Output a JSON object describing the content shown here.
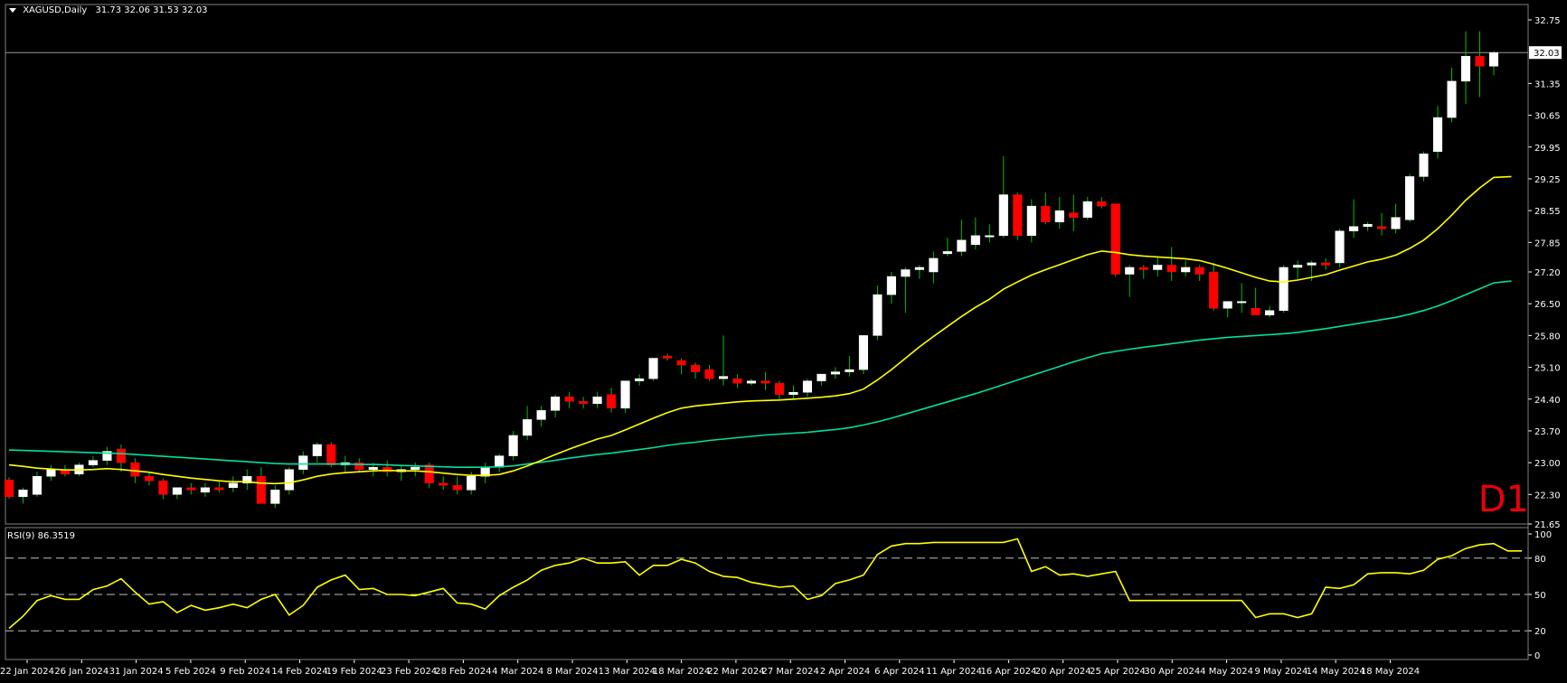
{
  "window": {
    "symbol": "XAGUSD,Daily",
    "ohlc": "31.73 32.06 31.53 32.03",
    "timeframe_label": "D1"
  },
  "colors": {
    "background": "#000000",
    "bull_body": "#ffffff",
    "bear_body": "#ff0000",
    "wick": "#00c000",
    "ma_fast": "#ffff00",
    "ma_slow": "#00e0a0",
    "rsi_line": "#ffff00",
    "axis_text": "#ffffff",
    "price_label_bg": "#ffffff",
    "timeframe_label": "#e8000a"
  },
  "chart_data": [
    {
      "type": "candlestick",
      "symbol": "XAGUSD",
      "period": "Daily",
      "last_price": 32.03,
      "price_axis_ticks": [
        "32.75",
        "32.03",
        "31.35",
        "30.65",
        "29.95",
        "29.25",
        "28.55",
        "27.85",
        "27.20",
        "26.50",
        "25.80",
        "25.10",
        "24.40",
        "23.70",
        "23.00",
        "22.30",
        "21.65"
      ],
      "ylim": [
        21.65,
        32.75
      ],
      "date_labels": [
        "22 Jan 2024",
        "26 Jan 2024",
        "31 Jan 2024",
        "5 Feb 2024",
        "9 Feb 2024",
        "14 Feb 2024",
        "19 Feb 2024",
        "23 Feb 2024",
        "28 Feb 2024",
        "4 Mar 2024",
        "8 Mar 2024",
        "13 Mar 2024",
        "18 Mar 2024",
        "22 Mar 2024",
        "27 Mar 2024",
        "2 Apr 2024",
        "6 Apr 2024",
        "11 Apr 2024",
        "16 Apr 2024",
        "20 Apr 2024",
        "25 Apr 2024",
        "30 Apr 2024",
        "4 May 2024",
        "9 May 2024",
        "14 May 2024",
        "18 May 2024"
      ],
      "candles": [
        [
          22.62,
          22.68,
          22.2,
          22.25
        ],
        [
          22.25,
          22.45,
          22.1,
          22.4
        ],
        [
          22.3,
          22.8,
          22.25,
          22.7
        ],
        [
          22.7,
          22.95,
          22.6,
          22.85
        ],
        [
          22.85,
          22.95,
          22.7,
          22.75
        ],
        [
          22.75,
          23.0,
          22.7,
          22.95
        ],
        [
          22.95,
          23.15,
          22.9,
          23.05
        ],
        [
          23.05,
          23.35,
          22.95,
          23.25
        ],
        [
          23.3,
          23.4,
          22.8,
          23.0
        ],
        [
          23.0,
          23.1,
          22.55,
          22.7
        ],
        [
          22.7,
          22.8,
          22.5,
          22.6
        ],
        [
          22.6,
          22.65,
          22.2,
          22.3
        ],
        [
          22.3,
          22.45,
          22.2,
          22.45
        ],
        [
          22.45,
          22.55,
          22.3,
          22.4
        ],
        [
          22.35,
          22.55,
          22.25,
          22.45
        ],
        [
          22.45,
          22.6,
          22.35,
          22.4
        ],
        [
          22.45,
          22.7,
          22.35,
          22.55
        ],
        [
          22.55,
          22.85,
          22.4,
          22.7
        ],
        [
          22.7,
          22.9,
          22.1,
          22.1
        ],
        [
          22.1,
          22.5,
          22.0,
          22.4
        ],
        [
          22.4,
          22.9,
          22.3,
          22.85
        ],
        [
          22.85,
          23.25,
          22.75,
          23.15
        ],
        [
          23.15,
          23.45,
          23.0,
          23.4
        ],
        [
          23.4,
          23.45,
          22.9,
          22.95
        ],
        [
          22.95,
          23.15,
          22.8,
          23.0
        ],
        [
          23.0,
          23.1,
          22.8,
          22.85
        ],
        [
          22.85,
          23.0,
          22.7,
          22.9
        ],
        [
          22.9,
          23.05,
          22.7,
          22.8
        ],
        [
          22.8,
          22.95,
          22.6,
          22.85
        ],
        [
          22.85,
          23.0,
          22.7,
          22.9
        ],
        [
          22.95,
          23.0,
          22.45,
          22.55
        ],
        [
          22.55,
          22.7,
          22.4,
          22.5
        ],
        [
          22.5,
          22.7,
          22.3,
          22.4
        ],
        [
          22.4,
          22.8,
          22.3,
          22.7
        ],
        [
          22.7,
          23.0,
          22.55,
          22.9
        ],
        [
          22.9,
          23.2,
          22.8,
          23.15
        ],
        [
          23.15,
          23.7,
          23.05,
          23.6
        ],
        [
          23.6,
          24.25,
          23.5,
          23.95
        ],
        [
          23.95,
          24.25,
          23.8,
          24.15
        ],
        [
          24.15,
          24.5,
          24.0,
          24.45
        ],
        [
          24.45,
          24.55,
          24.2,
          24.35
        ],
        [
          24.35,
          24.45,
          24.2,
          24.3
        ],
        [
          24.3,
          24.55,
          24.2,
          24.45
        ],
        [
          24.5,
          24.65,
          24.1,
          24.2
        ],
        [
          24.2,
          24.8,
          24.1,
          24.8
        ],
        [
          24.8,
          24.95,
          24.7,
          24.85
        ],
        [
          24.85,
          25.3,
          24.8,
          25.3
        ],
        [
          25.35,
          25.4,
          25.25,
          25.3
        ],
        [
          25.25,
          25.3,
          24.95,
          25.15
        ],
        [
          25.15,
          25.2,
          24.85,
          25.0
        ],
        [
          25.05,
          25.15,
          24.8,
          24.85
        ],
        [
          24.85,
          25.8,
          24.7,
          24.9
        ],
        [
          24.85,
          24.95,
          24.65,
          24.75
        ],
        [
          24.75,
          24.85,
          24.7,
          24.8
        ],
        [
          24.8,
          25.0,
          24.6,
          24.75
        ],
        [
          24.75,
          24.8,
          24.4,
          24.5
        ],
        [
          24.5,
          24.7,
          24.4,
          24.55
        ],
        [
          24.55,
          24.85,
          24.45,
          24.8
        ],
        [
          24.8,
          24.95,
          24.7,
          24.95
        ],
        [
          24.95,
          25.1,
          24.85,
          25.0
        ],
        [
          25.0,
          25.35,
          24.9,
          25.05
        ],
        [
          25.05,
          25.8,
          24.95,
          25.8
        ],
        [
          25.8,
          26.9,
          25.7,
          26.7
        ],
        [
          26.7,
          27.2,
          26.5,
          27.1
        ],
        [
          27.1,
          27.3,
          26.3,
          27.25
        ],
        [
          27.25,
          27.35,
          27.05,
          27.3
        ],
        [
          27.2,
          27.65,
          26.95,
          27.5
        ],
        [
          27.6,
          27.95,
          27.55,
          27.65
        ],
        [
          27.65,
          28.35,
          27.55,
          27.9
        ],
        [
          27.8,
          28.4,
          27.7,
          28.0
        ],
        [
          28.0,
          28.25,
          27.85,
          28.0
        ],
        [
          28.0,
          29.75,
          27.95,
          28.9
        ],
        [
          28.9,
          28.95,
          27.9,
          28.0
        ],
        [
          28.0,
          28.8,
          27.85,
          28.65
        ],
        [
          28.65,
          28.95,
          28.25,
          28.3
        ],
        [
          28.3,
          28.85,
          28.15,
          28.55
        ],
        [
          28.5,
          28.9,
          28.1,
          28.4
        ],
        [
          28.4,
          28.85,
          28.35,
          28.75
        ],
        [
          28.75,
          28.85,
          28.6,
          28.65
        ],
        [
          28.7,
          28.7,
          27.1,
          27.15
        ],
        [
          27.15,
          27.35,
          26.65,
          27.3
        ],
        [
          27.3,
          27.35,
          27.05,
          27.25
        ],
        [
          27.25,
          27.55,
          27.1,
          27.35
        ],
        [
          27.35,
          27.75,
          27.0,
          27.2
        ],
        [
          27.2,
          27.45,
          27.1,
          27.3
        ],
        [
          27.3,
          27.35,
          27.0,
          27.15
        ],
        [
          27.2,
          27.4,
          26.35,
          26.4
        ],
        [
          26.4,
          26.55,
          26.2,
          26.55
        ],
        [
          26.55,
          26.95,
          26.3,
          26.55
        ],
        [
          26.4,
          26.85,
          26.25,
          26.25
        ],
        [
          26.25,
          26.45,
          26.2,
          26.35
        ],
        [
          26.35,
          27.35,
          26.3,
          27.3
        ],
        [
          27.3,
          27.45,
          27.05,
          27.35
        ],
        [
          27.35,
          27.45,
          27.0,
          27.4
        ],
        [
          27.4,
          27.5,
          27.25,
          27.35
        ],
        [
          27.4,
          28.15,
          27.3,
          28.1
        ],
        [
          28.1,
          28.8,
          27.95,
          28.2
        ],
        [
          28.2,
          28.3,
          28.1,
          28.25
        ],
        [
          28.2,
          28.5,
          28.0,
          28.15
        ],
        [
          28.15,
          28.7,
          28.05,
          28.4
        ],
        [
          28.35,
          29.35,
          28.3,
          29.3
        ],
        [
          29.3,
          29.85,
          29.2,
          29.8
        ],
        [
          29.85,
          30.85,
          29.7,
          30.6
        ],
        [
          30.6,
          31.7,
          30.5,
          31.4
        ],
        [
          31.4,
          32.5,
          30.9,
          31.95
        ],
        [
          31.95,
          32.5,
          31.05,
          31.73
        ],
        [
          31.73,
          32.06,
          31.53,
          32.03
        ]
      ],
      "ma_fast": [
        22.95,
        22.92,
        22.88,
        22.86,
        22.84,
        22.84,
        22.85,
        22.87,
        22.85,
        22.82,
        22.79,
        22.74,
        22.7,
        22.66,
        22.63,
        22.6,
        22.58,
        22.58,
        22.55,
        22.54,
        22.56,
        22.62,
        22.7,
        22.75,
        22.78,
        22.8,
        22.82,
        22.83,
        22.82,
        22.82,
        22.8,
        22.77,
        22.74,
        22.72,
        22.72,
        22.74,
        22.82,
        22.93,
        23.05,
        23.18,
        23.3,
        23.41,
        23.52,
        23.6,
        23.72,
        23.85,
        23.98,
        24.1,
        24.2,
        24.25,
        24.28,
        24.31,
        24.34,
        24.36,
        24.37,
        24.38,
        24.4,
        24.42,
        24.44,
        24.47,
        24.52,
        24.62,
        24.82,
        25.05,
        25.3,
        25.55,
        25.78,
        26.0,
        26.22,
        26.42,
        26.6,
        26.82,
        26.98,
        27.13,
        27.25,
        27.36,
        27.47,
        27.58,
        27.66,
        27.63,
        27.58,
        27.55,
        27.53,
        27.51,
        27.49,
        27.45,
        27.37,
        27.28,
        27.18,
        27.08,
        27.0,
        26.98,
        27.02,
        27.08,
        27.14,
        27.24,
        27.33,
        27.42,
        27.48,
        27.57,
        27.72,
        27.9,
        28.15,
        28.45,
        28.78,
        29.05,
        29.28
      ],
      "ma_slow": [
        23.28,
        23.27,
        23.26,
        23.25,
        23.24,
        23.23,
        23.22,
        23.21,
        23.2,
        23.18,
        23.16,
        23.14,
        23.12,
        23.1,
        23.08,
        23.06,
        23.04,
        23.02,
        23.0,
        22.98,
        22.97,
        22.97,
        22.97,
        22.97,
        22.97,
        22.96,
        22.96,
        22.95,
        22.94,
        22.93,
        22.92,
        22.91,
        22.9,
        22.9,
        22.9,
        22.91,
        22.93,
        22.97,
        23.01,
        23.05,
        23.1,
        23.14,
        23.18,
        23.21,
        23.25,
        23.29,
        23.33,
        23.38,
        23.42,
        23.45,
        23.49,
        23.52,
        23.55,
        23.58,
        23.61,
        23.63,
        23.65,
        23.67,
        23.7,
        23.73,
        23.77,
        23.83,
        23.9,
        23.98,
        24.07,
        24.16,
        24.25,
        24.34,
        24.43,
        24.52,
        24.62,
        24.72,
        24.82,
        24.92,
        25.02,
        25.12,
        25.22,
        25.31,
        25.4,
        25.45,
        25.5,
        25.54,
        25.58,
        25.62,
        25.66,
        25.7,
        25.73,
        25.76,
        25.78,
        25.8,
        25.82,
        25.84,
        25.87,
        25.91,
        25.95,
        26.0,
        26.05,
        26.1,
        26.15,
        26.2,
        26.27,
        26.35,
        26.45,
        26.57,
        26.7,
        26.83,
        26.96
      ],
      "ma_fast_end": 29.3,
      "ma_slow_end": 27.0
    },
    {
      "type": "line",
      "indicator": "RSI(9)",
      "current_value": "86.3519",
      "levels": [
        "80",
        "50",
        "20"
      ],
      "axis_ticks": [
        "100",
        "80",
        "50",
        "20",
        "0"
      ],
      "ylim": [
        0,
        100
      ],
      "values": [
        22,
        32,
        45,
        49,
        46,
        46,
        54,
        57,
        63,
        52,
        42,
        44,
        35,
        41,
        37,
        39,
        42,
        39,
        46,
        50,
        33,
        41,
        56,
        62,
        66,
        54,
        55,
        50,
        50,
        49,
        52,
        55,
        43,
        42,
        38,
        49,
        56,
        62,
        70,
        74,
        76,
        80,
        76,
        76,
        77,
        66,
        74,
        74,
        79,
        76,
        69,
        65,
        64,
        60,
        58,
        56,
        57,
        46,
        49,
        59,
        62,
        66,
        83,
        90,
        92,
        92,
        93,
        93,
        93,
        93,
        93,
        93,
        96,
        69,
        73,
        66,
        67,
        65,
        67,
        69,
        45,
        45,
        45,
        45,
        45,
        45,
        45,
        45,
        45,
        31,
        34,
        34,
        31,
        34,
        56,
        55,
        58,
        67,
        68,
        68,
        67,
        70,
        79,
        82,
        88,
        91,
        92,
        86,
        86
      ]
    }
  ]
}
